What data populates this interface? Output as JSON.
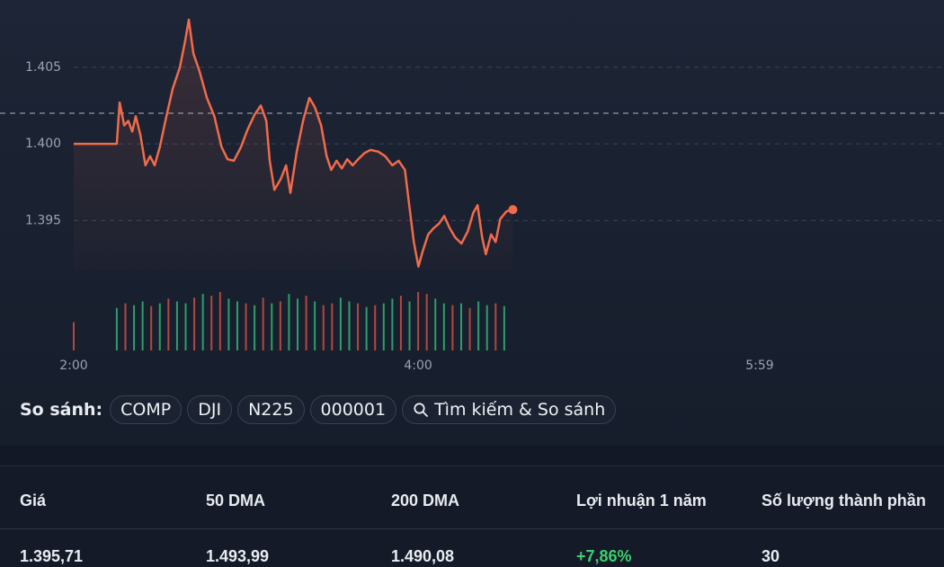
{
  "chart_data": {
    "type": "line",
    "x": [
      120,
      135,
      136,
      137.6,
      139,
      140.4,
      141.6,
      143.2,
      145,
      146.6,
      148.2,
      150,
      152.3,
      154.5,
      157,
      158.9,
      160.1,
      161.7,
      163.9,
      166.4,
      169,
      171.5,
      173.6,
      175.8,
      178.3,
      180.5,
      183,
      185.2,
      187.1,
      188.3,
      189.9,
      192.1,
      194,
      195.5,
      197.7,
      199.9,
      202.1,
      204,
      206.2,
      208.1,
      209.7,
      211.6,
      213.4,
      215.3,
      217.2,
      219.1,
      221.3,
      223.4,
      226,
      228.5,
      231,
      233.2,
      235.4,
      236.9,
      238.5,
      240.1,
      241.6,
      243.5,
      245.4,
      247.3,
      249.1,
      251,
      252.9,
      255.1,
      257.3,
      259.2,
      260.7,
      262.3,
      263.6,
      265.4,
      267,
      268.6,
      270.8,
      273
    ],
    "values": [
      1.4,
      1.4,
      1.4027,
      1.4012,
      1.4015,
      1.4008,
      1.4018,
      1.4006,
      1.3986,
      1.3992,
      1.3986,
      1.3998,
      1.4018,
      1.4036,
      1.405,
      1.4068,
      1.4081,
      1.4059,
      1.4047,
      1.403,
      1.4018,
      1.3998,
      1.399,
      1.3989,
      1.3998,
      1.4009,
      1.4019,
      1.4025,
      1.4015,
      1.3989,
      1.397,
      1.3977,
      1.3986,
      1.3968,
      1.3995,
      1.4015,
      1.403,
      1.4024,
      1.4012,
      1.3992,
      1.3983,
      1.3989,
      1.3984,
      1.399,
      1.3986,
      1.399,
      1.3994,
      1.3996,
      1.3995,
      1.3992,
      1.3986,
      1.3989,
      1.3983,
      1.396,
      1.3936,
      1.392,
      1.393,
      1.3941,
      1.3945,
      1.3948,
      1.3953,
      1.3945,
      1.3939,
      1.3935,
      1.3943,
      1.3955,
      1.396,
      1.3939,
      1.3928,
      1.3941,
      1.3936,
      1.3951,
      1.3956,
      1.39571
    ],
    "color": "#f26b4a",
    "xlim": [
      120,
      359
    ],
    "xticks": [
      {
        "value": 120,
        "label": "2:00"
      },
      {
        "value": 240,
        "label": "4:00"
      },
      {
        "value": 359,
        "label": "5:59"
      }
    ],
    "ylim": [
      1.3918,
      1.4088
    ],
    "yticks": [
      1.395,
      {
        "value": 1.4,
        "label": "1.400"
      },
      1.405
    ],
    "grid": true,
    "reference_line": 1.402,
    "volume": {
      "x": [
        120,
        135,
        138,
        141,
        144,
        147,
        150,
        153,
        156,
        159,
        162,
        165,
        168,
        171,
        174,
        177,
        180,
        183,
        186,
        189,
        192,
        195,
        198,
        201,
        204,
        207,
        210,
        213,
        216,
        219,
        222,
        225,
        228,
        231,
        234,
        237,
        240,
        243,
        246,
        249,
        252,
        255,
        258,
        261,
        264,
        267,
        270
      ],
      "values": [
        30,
        45,
        50,
        48,
        52,
        47,
        50,
        55,
        52,
        50,
        56,
        60,
        58,
        62,
        55,
        52,
        50,
        48,
        56,
        50,
        52,
        60,
        55,
        58,
        52,
        48,
        50,
        56,
        52,
        50,
        46,
        48,
        50,
        55,
        58,
        52,
        62,
        60,
        55,
        50,
        48,
        50,
        45,
        52,
        48,
        50,
        47
      ],
      "up": [
        false,
        true,
        false,
        true,
        true,
        false,
        true,
        false,
        true,
        true,
        false,
        true,
        false,
        false,
        true,
        true,
        false,
        true,
        false,
        true,
        false,
        true,
        true,
        false,
        true,
        false,
        false,
        true,
        true,
        false,
        true,
        false,
        true,
        true,
        false,
        true,
        false,
        false,
        true,
        true,
        false,
        true,
        false,
        true,
        true,
        false,
        true
      ],
      "up_color": "#2e9e6b",
      "down_color": "#b2483f"
    }
  },
  "compare": {
    "label": "So sánh:",
    "chips": [
      "COMP",
      "DJI",
      "N225",
      "000001"
    ],
    "search": "Tìm kiếm & So sánh"
  },
  "stats": {
    "headers": [
      "Giá",
      "50 DMA",
      "200 DMA",
      "Lợi nhuận 1 năm",
      "Số lượng thành phần"
    ],
    "values": [
      "1.395,71",
      "1.493,99",
      "1.490,08",
      "+7,86%",
      "30"
    ]
  }
}
